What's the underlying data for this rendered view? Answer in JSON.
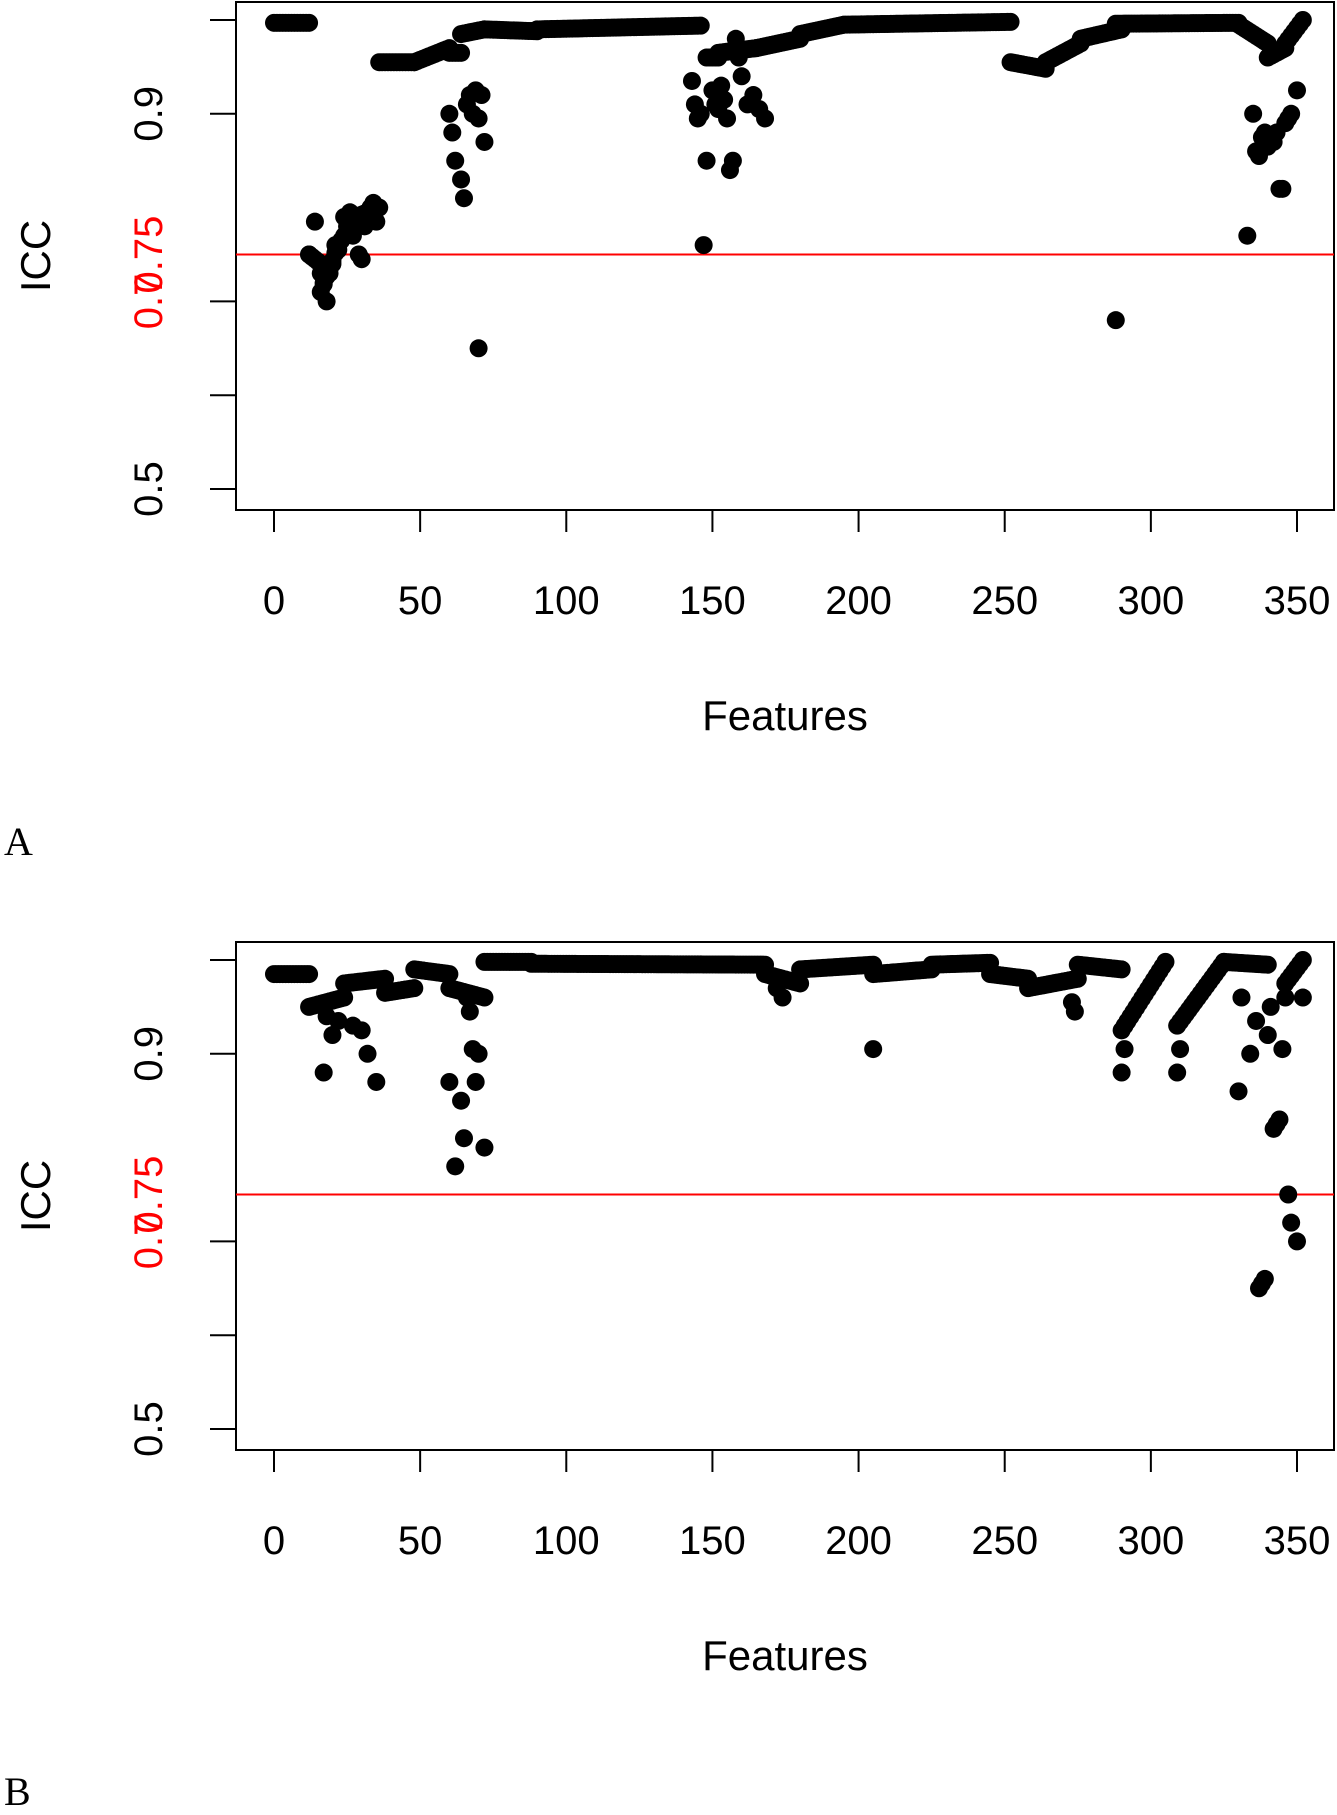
{
  "chart_data": [
    {
      "panel_label": "A",
      "type": "scatter",
      "xlabel": "Features",
      "ylabel": "ICC",
      "xlim": [
        -14,
        365
      ],
      "ylim": [
        0.48,
        1.02
      ],
      "x_ticks": [
        "0",
        "50",
        "100",
        "150",
        "200",
        "250",
        "300",
        "350"
      ],
      "y_ticks": [
        "0.5",
        "",
        "",
        "0.9",
        ""
      ],
      "y_tick_values": [
        0.5,
        0.6,
        0.7,
        0.9,
        1.0
      ],
      "reference_line": {
        "value": 0.75,
        "label": "0.75",
        "color": "#ff0000"
      },
      "overlap_tick": {
        "value": 0.7,
        "label": "0.7"
      },
      "grid": false,
      "marker_color": "#000000",
      "segments": [
        {
          "x0": 0,
          "x1": 12,
          "y0": 0.997,
          "y1": 0.997
        },
        {
          "x0": 12,
          "x1": 16,
          "y0": 0.75,
          "y1": 0.74
        },
        {
          "x0": 16,
          "x1": 22,
          "y0": 0.71,
          "y1": 0.76
        },
        {
          "x0": 22,
          "x1": 28,
          "y0": 0.76,
          "y1": 0.79
        },
        {
          "x0": 28,
          "x1": 36,
          "y0": 0.79,
          "y1": 0.8
        },
        {
          "x0": 36,
          "x1": 48,
          "y0": 0.955,
          "y1": 0.955
        },
        {
          "x0": 48,
          "x1": 60,
          "y0": 0.955,
          "y1": 0.97
        },
        {
          "x0": 60,
          "x1": 64,
          "y0": 0.965,
          "y1": 0.965
        },
        {
          "x0": 64,
          "x1": 72,
          "y0": 0.985,
          "y1": 0.99
        },
        {
          "x0": 72,
          "x1": 90,
          "y0": 0.99,
          "y1": 0.988
        },
        {
          "x0": 90,
          "x1": 146,
          "y0": 0.99,
          "y1": 0.994
        },
        {
          "x0": 148,
          "x1": 152,
          "y0": 0.96,
          "y1": 0.96
        },
        {
          "x0": 152,
          "x1": 165,
          "y0": 0.965,
          "y1": 0.97
        },
        {
          "x0": 165,
          "x1": 180,
          "y0": 0.97,
          "y1": 0.98
        },
        {
          "x0": 180,
          "x1": 195,
          "y0": 0.985,
          "y1": 0.995
        },
        {
          "x0": 195,
          "x1": 252,
          "y0": 0.995,
          "y1": 0.998
        },
        {
          "x0": 252,
          "x1": 264,
          "y0": 0.955,
          "y1": 0.948
        },
        {
          "x0": 264,
          "x1": 276,
          "y0": 0.955,
          "y1": 0.975
        },
        {
          "x0": 276,
          "x1": 290,
          "y0": 0.98,
          "y1": 0.99
        },
        {
          "x0": 288,
          "x1": 330,
          "y0": 0.996,
          "y1": 0.997
        },
        {
          "x0": 330,
          "x1": 340,
          "y0": 0.995,
          "y1": 0.975
        },
        {
          "x0": 340,
          "x1": 346,
          "y0": 0.96,
          "y1": 0.97
        },
        {
          "x0": 346,
          "x1": 352,
          "y0": 0.975,
          "y1": 1.0
        }
      ],
      "points": [
        [
          12,
          0.75
        ],
        [
          14,
          0.785
        ],
        [
          16,
          0.73
        ],
        [
          17,
          0.72
        ],
        [
          18,
          0.7
        ],
        [
          19,
          0.73
        ],
        [
          20,
          0.74
        ],
        [
          21,
          0.76
        ],
        [
          22,
          0.755
        ],
        [
          24,
          0.79
        ],
        [
          25,
          0.78
        ],
        [
          26,
          0.795
        ],
        [
          27,
          0.77
        ],
        [
          28,
          0.785
        ],
        [
          29,
          0.75
        ],
        [
          30,
          0.745
        ],
        [
          31,
          0.78
        ],
        [
          32,
          0.79
        ],
        [
          33,
          0.8
        ],
        [
          34,
          0.805
        ],
        [
          35,
          0.785
        ],
        [
          60,
          0.9
        ],
        [
          61,
          0.88
        ],
        [
          62,
          0.85
        ],
        [
          64,
          0.83
        ],
        [
          65,
          0.81
        ],
        [
          66,
          0.91
        ],
        [
          67,
          0.92
        ],
        [
          68,
          0.9
        ],
        [
          69,
          0.925
        ],
        [
          70,
          0.895
        ],
        [
          71,
          0.92
        ],
        [
          72,
          0.87
        ],
        [
          70,
          0.65
        ],
        [
          143,
          0.935
        ],
        [
          144,
          0.91
        ],
        [
          145,
          0.895
        ],
        [
          146,
          0.9
        ],
        [
          147,
          0.76
        ],
        [
          148,
          0.85
        ],
        [
          150,
          0.925
        ],
        [
          151,
          0.91
        ],
        [
          152,
          0.905
        ],
        [
          153,
          0.93
        ],
        [
          154,
          0.915
        ],
        [
          155,
          0.895
        ],
        [
          156,
          0.84
        ],
        [
          157,
          0.85
        ],
        [
          158,
          0.98
        ],
        [
          159,
          0.96
        ],
        [
          160,
          0.94
        ],
        [
          162,
          0.91
        ],
        [
          164,
          0.92
        ],
        [
          166,
          0.905
        ],
        [
          168,
          0.895
        ],
        [
          288,
          0.68
        ],
        [
          333,
          0.77
        ],
        [
          335,
          0.9
        ],
        [
          336,
          0.86
        ],
        [
          337,
          0.855
        ],
        [
          338,
          0.875
        ],
        [
          339,
          0.88
        ],
        [
          340,
          0.865
        ],
        [
          341,
          0.875
        ],
        [
          342,
          0.87
        ],
        [
          343,
          0.88
        ],
        [
          344,
          0.82
        ],
        [
          345,
          0.82
        ],
        [
          346,
          0.89
        ],
        [
          347,
          0.895
        ],
        [
          348,
          0.9
        ],
        [
          350,
          0.925
        ]
      ]
    },
    {
      "panel_label": "B",
      "type": "scatter",
      "xlabel": "Features",
      "ylabel": "ICC",
      "xlim": [
        -14,
        365
      ],
      "ylim": [
        0.48,
        1.02
      ],
      "x_ticks": [
        "0",
        "50",
        "100",
        "150",
        "200",
        "250",
        "300",
        "350"
      ],
      "y_ticks": [
        "0.5",
        "",
        "",
        "0.9",
        ""
      ],
      "y_tick_values": [
        0.5,
        0.6,
        0.7,
        0.9,
        1.0
      ],
      "reference_line": {
        "value": 0.75,
        "label": "0.75",
        "color": "#ff0000"
      },
      "overlap_tick": {
        "value": 0.7,
        "label": "0.7"
      },
      "grid": false,
      "marker_color": "#000000",
      "segments": [
        {
          "x0": 0,
          "x1": 12,
          "y0": 0.985,
          "y1": 0.985
        },
        {
          "x0": 12,
          "x1": 24,
          "y0": 0.95,
          "y1": 0.96
        },
        {
          "x0": 24,
          "x1": 38,
          "y0": 0.975,
          "y1": 0.98
        },
        {
          "x0": 38,
          "x1": 48,
          "y0": 0.965,
          "y1": 0.97
        },
        {
          "x0": 48,
          "x1": 60,
          "y0": 0.99,
          "y1": 0.985
        },
        {
          "x0": 60,
          "x1": 72,
          "y0": 0.97,
          "y1": 0.96
        },
        {
          "x0": 72,
          "x1": 88,
          "y0": 0.998,
          "y1": 0.998
        },
        {
          "x0": 88,
          "x1": 168,
          "y0": 0.996,
          "y1": 0.995
        },
        {
          "x0": 168,
          "x1": 180,
          "y0": 0.985,
          "y1": 0.975
        },
        {
          "x0": 180,
          "x1": 205,
          "y0": 0.99,
          "y1": 0.995
        },
        {
          "x0": 205,
          "x1": 225,
          "y0": 0.985,
          "y1": 0.99
        },
        {
          "x0": 225,
          "x1": 245,
          "y0": 0.995,
          "y1": 0.997
        },
        {
          "x0": 245,
          "x1": 258,
          "y0": 0.985,
          "y1": 0.98
        },
        {
          "x0": 258,
          "x1": 275,
          "y0": 0.97,
          "y1": 0.98
        },
        {
          "x0": 275,
          "x1": 290,
          "y0": 0.995,
          "y1": 0.99
        },
        {
          "x0": 290,
          "x1": 305,
          "y0": 0.925,
          "y1": 0.998
        },
        {
          "x0": 309,
          "x1": 325,
          "y0": 0.93,
          "y1": 0.998
        },
        {
          "x0": 325,
          "x1": 340,
          "y0": 0.998,
          "y1": 0.995
        },
        {
          "x0": 346,
          "x1": 352,
          "y0": 0.975,
          "y1": 1.0
        }
      ],
      "points": [
        [
          17,
          0.88
        ],
        [
          18,
          0.94
        ],
        [
          20,
          0.92
        ],
        [
          22,
          0.935
        ],
        [
          27,
          0.93
        ],
        [
          30,
          0.925
        ],
        [
          32,
          0.9
        ],
        [
          35,
          0.87
        ],
        [
          60,
          0.87
        ],
        [
          62,
          0.78
        ],
        [
          64,
          0.85
        ],
        [
          65,
          0.81
        ],
        [
          66,
          0.96
        ],
        [
          67,
          0.945
        ],
        [
          68,
          0.905
        ],
        [
          69,
          0.87
        ],
        [
          70,
          0.9
        ],
        [
          72,
          0.8
        ],
        [
          172,
          0.97
        ],
        [
          174,
          0.96
        ],
        [
          205,
          0.905
        ],
        [
          273,
          0.955
        ],
        [
          274,
          0.945
        ],
        [
          290,
          0.88
        ],
        [
          291,
          0.905
        ],
        [
          309,
          0.88
        ],
        [
          310,
          0.905
        ],
        [
          330,
          0.86
        ],
        [
          331,
          0.96
        ],
        [
          334,
          0.9
        ],
        [
          336,
          0.935
        ],
        [
          337,
          0.65
        ],
        [
          338,
          0.655
        ],
        [
          339,
          0.66
        ],
        [
          340,
          0.92
        ],
        [
          341,
          0.95
        ],
        [
          342,
          0.82
        ],
        [
          343,
          0.825
        ],
        [
          344,
          0.83
        ],
        [
          345,
          0.905
        ],
        [
          346,
          0.96
        ],
        [
          347,
          0.75
        ],
        [
          348,
          0.72
        ],
        [
          350,
          0.7
        ],
        [
          352,
          0.96
        ]
      ]
    }
  ]
}
